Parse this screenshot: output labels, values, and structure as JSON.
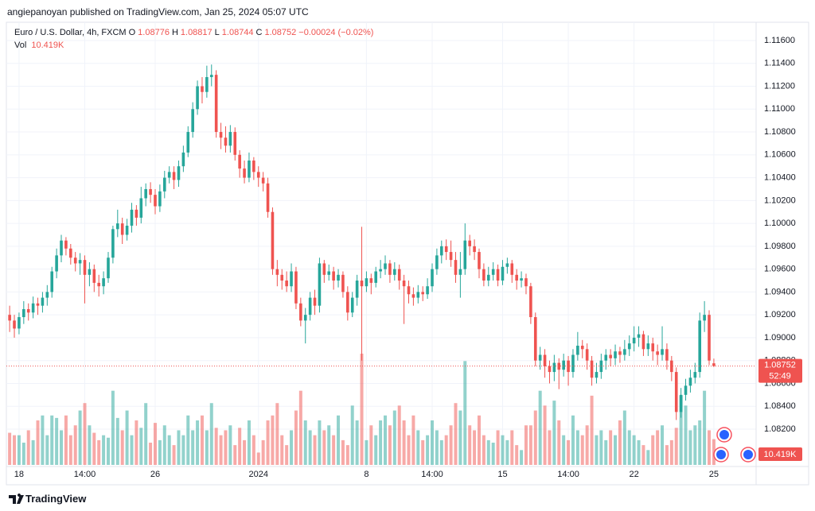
{
  "credit": "angiepanoyan published on TradingView.com, Jan 25, 2024 05:07 UTC",
  "footer": "TradingView",
  "chart_data": {
    "type": "candlestick",
    "symbol": "Euro / U.S. Dollar, 4h, FXCM",
    "ohlc_legend": [
      {
        "key": "O",
        "value": "1.08776"
      },
      {
        "key": "H",
        "value": "1.08817"
      },
      {
        "key": "L",
        "value": "1.08744"
      },
      {
        "key": "C",
        "value": "1.08752"
      }
    ],
    "change": "−0.00024 (−0.02%)",
    "volume_title": "Vol",
    "volume_legend": "10.419K",
    "last_price_label": "1.08752",
    "countdown": "52:49",
    "volume_axis_label": "10.419K",
    "up_color": "#26a69a",
    "down_color": "#ef5350",
    "open": [
      1.092,
      1.0915,
      1.0908,
      1.0918,
      1.0925,
      1.0922,
      1.093,
      1.0928,
      1.0935,
      1.094,
      1.0958,
      1.0972,
      1.0985,
      1.0978,
      1.097,
      1.0965,
      1.0968,
      1.0955,
      1.096,
      1.0948,
      1.0945,
      1.0952,
      1.097,
      1.0995,
      1.1,
      1.099,
      1.0998,
      1.1012,
      1.1005,
      1.1022,
      1.103,
      1.1025,
      1.1015,
      1.1028,
      1.104,
      1.1045,
      1.1038,
      1.105,
      1.1062,
      1.108,
      1.11,
      1.112,
      1.1115,
      1.1128,
      1.113,
      1.108,
      1.1075,
      1.1068,
      1.108,
      1.106,
      1.1048,
      1.104,
      1.1055,
      1.1045,
      1.104,
      1.1035,
      1.101,
      1.096,
      1.0955,
      1.095,
      1.0945,
      1.0958,
      1.093,
      1.0915,
      1.092,
      1.0935,
      1.0928,
      1.0965,
      1.0955,
      1.0958,
      1.095,
      1.0955,
      1.094,
      1.0922,
      1.0935,
      1.095,
      1.0945,
      1.0952,
      1.0948,
      1.0958,
      1.096,
      1.0965,
      1.0955,
      1.096,
      1.095,
      1.0945,
      1.0938,
      1.0935,
      1.094,
      1.0938,
      1.0945,
      1.096,
      1.0972,
      1.098,
      1.0975,
      1.0968,
      1.0955,
      1.096,
      1.0985,
      1.098,
      1.0975,
      1.096,
      1.095,
      1.0955,
      1.096,
      1.095,
      1.0962,
      1.0965,
      1.0955,
      1.095,
      1.0952,
      1.0945,
      1.0918,
      1.088,
      1.0885,
      1.0875,
      1.087,
      1.0878,
      1.0872,
      1.088,
      1.087,
      1.0885,
      1.0893,
      1.089,
      1.088,
      1.0865,
      1.087,
      1.088,
      1.0885,
      1.0882,
      1.0888,
      1.0885,
      1.089,
      1.0895,
      1.09,
      1.0903,
      1.089,
      1.0895,
      1.0888,
      1.0885,
      1.089,
      1.088,
      1.087,
      1.0835,
      1.085,
      1.0858,
      1.0865,
      1.087,
      1.0915,
      1.092,
      1.08776
    ],
    "high": [
      1.0928,
      1.092,
      1.0922,
      1.0932,
      1.093,
      1.0936,
      1.0935,
      1.094,
      1.0946,
      1.0962,
      1.0978,
      1.099,
      1.0988,
      1.0982,
      1.0975,
      1.0974,
      1.0972,
      1.0966,
      1.0964,
      1.0955,
      1.0958,
      1.0975,
      1.0998,
      1.1012,
      1.1005,
      1.1004,
      1.1018,
      1.1016,
      1.1032,
      1.1035,
      1.1036,
      1.103,
      1.1034,
      1.1046,
      1.105,
      1.105,
      1.1055,
      1.1068,
      1.1085,
      1.1106,
      1.1125,
      1.1128,
      1.1138,
      1.1139,
      1.1134,
      1.1088,
      1.1085,
      1.1086,
      1.1084,
      1.1064,
      1.1055,
      1.1062,
      1.1058,
      1.105,
      1.1045,
      1.104,
      1.1014,
      1.0968,
      1.096,
      1.0958,
      1.0965,
      1.0962,
      1.0935,
      1.0926,
      1.094,
      1.0942,
      1.097,
      1.0968,
      1.0964,
      1.0962,
      1.096,
      1.0958,
      1.0945,
      1.094,
      1.0955,
      1.0997,
      1.0958,
      1.0956,
      1.0962,
      1.0968,
      1.0972,
      1.0968,
      1.0966,
      1.0964,
      1.0955,
      1.095,
      1.0944,
      1.0946,
      1.0945,
      1.0952,
      1.0965,
      1.0978,
      1.0985,
      1.0986,
      1.0985,
      1.0975,
      1.0975,
      1.1,
      1.099,
      1.0986,
      1.0978,
      1.0965,
      1.0962,
      1.0966,
      1.0964,
      1.0968,
      1.097,
      1.0968,
      1.096,
      1.0958,
      1.0956,
      1.0948,
      1.0922,
      1.0892,
      1.089,
      1.088,
      1.0885,
      1.0882,
      1.0886,
      1.0884,
      1.089,
      1.0905,
      1.0898,
      1.0895,
      1.0884,
      1.0878,
      1.0886,
      1.089,
      1.089,
      1.0894,
      1.0892,
      1.0898,
      1.0902,
      1.091,
      1.091,
      1.0906,
      1.0902,
      1.09,
      1.0894,
      1.091,
      1.0895,
      1.0884,
      1.0874,
      1.0856,
      1.0864,
      1.0872,
      1.0878,
      1.0922,
      1.0932,
      1.0924,
      1.08817
    ],
    "low": [
      1.0905,
      1.09,
      1.0903,
      1.0912,
      1.0915,
      1.0917,
      1.092,
      1.0922,
      1.0928,
      1.0935,
      1.0952,
      1.0966,
      1.0972,
      1.0964,
      1.0958,
      1.0955,
      1.093,
      1.0945,
      1.094,
      1.0936,
      1.0938,
      1.0948,
      1.0965,
      1.0988,
      1.0982,
      1.0985,
      1.0992,
      1.0998,
      1.1,
      1.1015,
      1.1018,
      1.1008,
      1.101,
      1.1022,
      1.1035,
      1.103,
      1.1032,
      1.1045,
      1.1058,
      1.1075,
      1.1095,
      1.1105,
      1.111,
      1.112,
      1.1075,
      1.1065,
      1.1062,
      1.1062,
      1.1055,
      1.104,
      1.1035,
      1.1036,
      1.1038,
      1.1032,
      1.1028,
      1.1005,
      1.0955,
      1.0945,
      1.0942,
      1.094,
      1.094,
      1.0925,
      1.091,
      1.0895,
      1.0915,
      1.092,
      1.0922,
      1.0948,
      1.095,
      1.0942,
      1.0944,
      1.0935,
      1.0915,
      1.0918,
      1.0928,
      1.088,
      1.094,
      1.0938,
      1.0944,
      1.0952,
      1.0955,
      1.0948,
      1.095,
      1.0942,
      1.0912,
      1.093,
      1.0928,
      1.093,
      1.0932,
      1.0934,
      1.094,
      1.0955,
      1.0965,
      1.0968,
      1.0962,
      1.0948,
      1.0935,
      1.0955,
      1.0972,
      1.0968,
      1.0952,
      1.0945,
      1.0945,
      1.095,
      1.0945,
      1.0946,
      1.0956,
      1.0948,
      1.0942,
      1.0944,
      1.0938,
      1.0912,
      1.0875,
      1.0872,
      1.0865,
      1.086,
      1.0862,
      1.0855,
      1.0866,
      1.0858,
      1.0865,
      1.088,
      1.0882,
      1.0872,
      1.0858,
      1.086,
      1.0864,
      1.0872,
      1.0875,
      1.0876,
      1.0878,
      1.088,
      1.0884,
      1.0888,
      1.0892,
      1.0884,
      1.0884,
      1.088,
      1.0876,
      1.088,
      1.0872,
      1.0862,
      1.0828,
      1.083,
      1.0845,
      1.0852,
      1.086,
      1.0865,
      1.0905,
      1.0876,
      1.08744
    ],
    "close": [
      1.0915,
      1.0908,
      1.0918,
      1.0925,
      1.0922,
      1.093,
      1.0928,
      1.0935,
      1.094,
      1.0958,
      1.0972,
      1.0985,
      1.0978,
      1.097,
      1.0965,
      1.0968,
      1.0955,
      1.096,
      1.0948,
      1.0945,
      1.0952,
      1.097,
      1.0995,
      1.1,
      1.099,
      1.0998,
      1.1012,
      1.1005,
      1.1022,
      1.103,
      1.1025,
      1.1015,
      1.1028,
      1.104,
      1.1045,
      1.1038,
      1.105,
      1.1062,
      1.108,
      1.11,
      1.112,
      1.1115,
      1.1128,
      1.113,
      1.108,
      1.1075,
      1.1068,
      1.108,
      1.106,
      1.1048,
      1.104,
      1.1055,
      1.1045,
      1.104,
      1.1035,
      1.101,
      1.096,
      1.0955,
      1.095,
      1.0945,
      1.0958,
      1.093,
      1.0915,
      1.092,
      1.0935,
      1.0928,
      1.0965,
      1.0955,
      1.0958,
      1.095,
      1.0955,
      1.094,
      1.0922,
      1.0935,
      1.095,
      1.0945,
      1.0952,
      1.0948,
      1.0958,
      1.096,
      1.0965,
      1.0955,
      1.096,
      1.095,
      1.0945,
      1.0938,
      1.0935,
      1.094,
      1.0938,
      1.0945,
      1.096,
      1.0972,
      1.098,
      1.0975,
      1.0968,
      1.0955,
      1.096,
      1.0985,
      1.098,
      1.0975,
      1.096,
      1.095,
      1.0955,
      1.096,
      1.095,
      1.0962,
      1.0965,
      1.0955,
      1.095,
      1.0952,
      1.0945,
      1.0918,
      1.088,
      1.0885,
      1.0875,
      1.087,
      1.0878,
      1.0872,
      1.088,
      1.087,
      1.0885,
      1.0893,
      1.089,
      1.088,
      1.0865,
      1.087,
      1.088,
      1.0885,
      1.0882,
      1.0888,
      1.0885,
      1.089,
      1.0895,
      1.09,
      1.0903,
      1.089,
      1.0895,
      1.0888,
      1.0885,
      1.089,
      1.088,
      1.087,
      1.0835,
      1.085,
      1.0858,
      1.0865,
      1.087,
      1.0915,
      1.092,
      1.088,
      1.08752
    ],
    "volume": [
      13,
      12,
      12,
      9,
      14,
      10,
      18,
      20,
      12,
      20,
      19,
      14,
      20,
      12,
      16,
      22,
      25,
      16,
      13,
      10,
      12,
      11,
      30,
      19,
      14,
      22,
      12,
      18,
      15,
      25,
      9,
      17,
      10,
      16,
      12,
      8,
      14,
      12,
      20,
      14,
      18,
      20,
      14,
      25,
      15,
      12,
      14,
      16,
      8,
      15,
      10,
      18,
      12,
      5,
      10,
      18,
      20,
      25,
      12,
      8,
      14,
      22,
      30,
      18,
      14,
      12,
      18,
      14,
      16,
      12,
      20,
      10,
      8,
      24,
      18,
      45,
      10,
      16,
      12,
      18,
      20,
      16,
      22,
      24,
      18,
      12,
      20,
      14,
      10,
      12,
      18,
      14,
      10,
      12,
      16,
      25,
      22,
      42,
      16,
      14,
      20,
      12,
      10,
      9,
      14,
      12,
      10,
      14,
      8,
      6,
      16,
      16,
      22,
      30,
      24,
      14,
      26,
      18,
      12,
      10,
      20,
      14,
      12,
      16,
      28,
      12,
      14,
      10,
      14,
      12,
      18,
      22,
      14,
      12,
      10,
      8,
      6,
      12,
      14,
      16,
      8,
      10,
      15,
      28,
      24,
      14,
      16,
      18,
      30,
      14,
      10.419
    ],
    "xlim": [
      -0.7,
      159
    ],
    "xticks": [
      {
        "value": 2,
        "label": "18"
      },
      {
        "value": 16,
        "label": "14:00"
      },
      {
        "value": 31,
        "label": "26"
      },
      {
        "value": 53,
        "label": "2024"
      },
      {
        "value": 76,
        "label": "8"
      },
      {
        "value": 90,
        "label": "14:00"
      },
      {
        "value": 105,
        "label": "15"
      },
      {
        "value": 119,
        "label": "14:00"
      },
      {
        "value": 133,
        "label": "22"
      },
      {
        "value": 150,
        "label": "25"
      }
    ],
    "ylim": [
      1.07887,
      1.11746
    ],
    "yticks": [
      {
        "value": 1.116,
        "label": "1.11600"
      },
      {
        "value": 1.114,
        "label": "1.11400"
      },
      {
        "value": 1.112,
        "label": "1.11200"
      },
      {
        "value": 1.11,
        "label": "1.11000"
      },
      {
        "value": 1.108,
        "label": "1.10800"
      },
      {
        "value": 1.106,
        "label": "1.10600"
      },
      {
        "value": 1.104,
        "label": "1.10400"
      },
      {
        "value": 1.102,
        "label": "1.10200"
      },
      {
        "value": 1.1,
        "label": "1.10000"
      },
      {
        "value": 1.098,
        "label": "1.09800"
      },
      {
        "value": 1.096,
        "label": "1.09600"
      },
      {
        "value": 1.094,
        "label": "1.09400"
      },
      {
        "value": 1.092,
        "label": "1.09200"
      },
      {
        "value": 1.09,
        "label": "1.09000"
      },
      {
        "value": 1.088,
        "label": "1.08800"
      },
      {
        "value": 1.086,
        "label": "1.08600"
      },
      {
        "value": 1.084,
        "label": "1.08400"
      },
      {
        "value": 1.082,
        "label": "1.08200"
      }
    ],
    "grid": true
  }
}
